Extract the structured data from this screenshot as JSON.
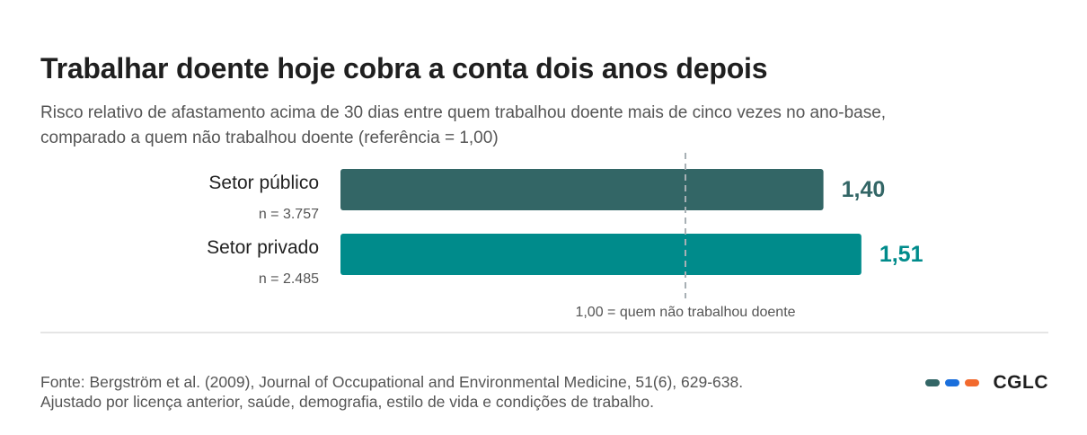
{
  "title": "Trabalhar doente hoje cobra a conta dois anos depois",
  "subtitle": "Risco relativo de afastamento acima de 30 dias entre quem trabalhou doente mais de cinco vezes no ano-base, comparado a quem não trabalhou doente (referência = 1,00)",
  "chart_data": {
    "type": "bar",
    "orientation": "horizontal",
    "categories": [
      "Setor público",
      "Setor privado"
    ],
    "sublabels": [
      "n = 3.757",
      "n = 2.485"
    ],
    "values": [
      1.4,
      1.51
    ],
    "value_labels": [
      "1,40",
      "1,51"
    ],
    "colors": [
      "#336666",
      "#008b8b"
    ],
    "xlim": [
      0,
      1.51
    ],
    "reference": {
      "value": 1.0,
      "label": "1,00 = quem não trabalhou doente",
      "style": "dashed"
    }
  },
  "footer": {
    "source": "Fonte: Bergström et al. (2009), Journal of Occupational and Environmental Medicine, 51(6), 629-638.",
    "note": "Ajustado por licença anterior, saúde, demografia, estilo de vida e condições de trabalho."
  },
  "brand": {
    "name": "CGLC",
    "dot_colors": [
      "#336666",
      "#1a6fdc",
      "#f26a2e"
    ]
  }
}
